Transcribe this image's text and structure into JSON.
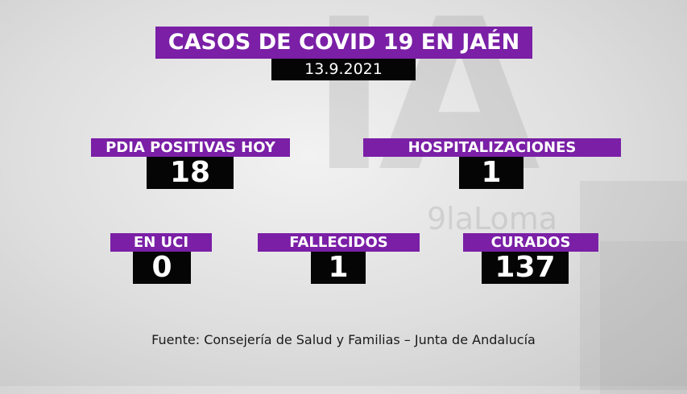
{
  "header": {
    "title": "CASOS DE COVID 19 EN JAÉN",
    "date": "13.9.2021"
  },
  "stats": {
    "pdia": {
      "label": "PDIA POSITIVAS HOY",
      "value": "18"
    },
    "hospitalizaciones": {
      "label": "HOSPITALIZACIONES",
      "value": "1"
    },
    "uci": {
      "label": "EN UCI",
      "value": "0"
    },
    "fallecidos": {
      "label": "FALLECIDOS",
      "value": "1"
    },
    "curados": {
      "label": "CURADOS",
      "value": "137"
    }
  },
  "source": "Fuente: Consejería de Salud y Familias – Junta de Andalucía",
  "colors": {
    "accent": "#7a1fa6",
    "value_bg": "#050505",
    "text": "#ffffff"
  }
}
